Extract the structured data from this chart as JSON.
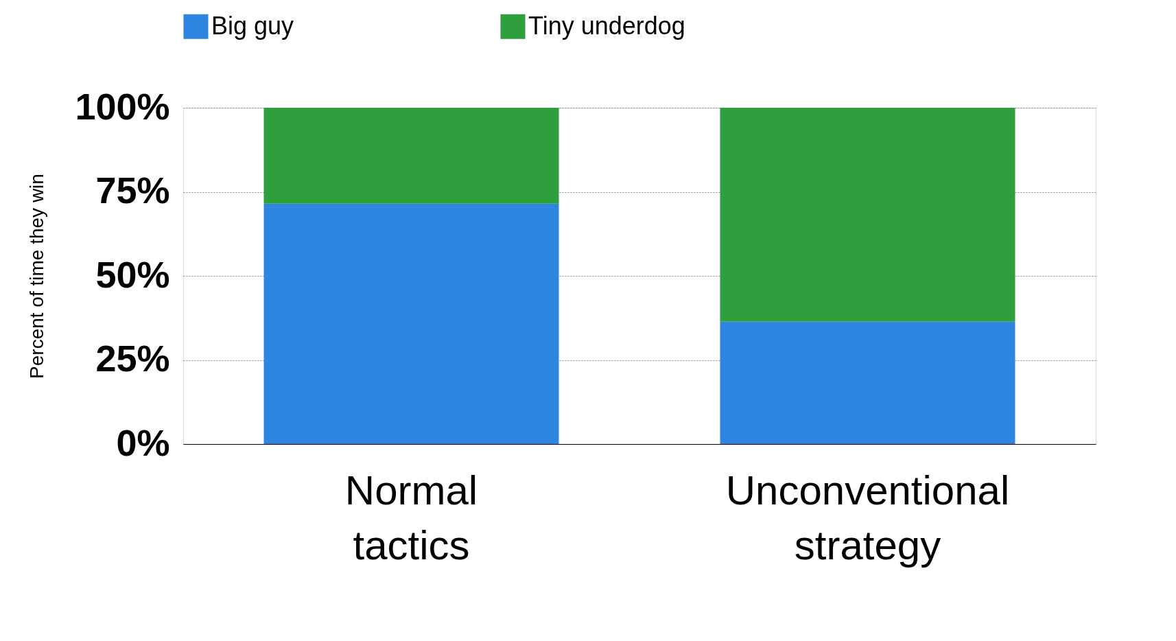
{
  "chart_data": {
    "type": "bar",
    "stacked": true,
    "ylabel": "Percent of time they win",
    "categories": [
      "Normal tactics",
      "Unconventional strategy"
    ],
    "series": [
      {
        "name": "Big guy",
        "color": "#2f86e0",
        "values": [
          71.5,
          36.4
        ]
      },
      {
        "name": "Tiny underdog",
        "color": "#2f9e3c",
        "values": [
          28.5,
          63.6
        ]
      }
    ],
    "ylim": [
      0,
      100
    ],
    "yticks": [
      {
        "value": 0,
        "label": "0%"
      },
      {
        "value": 25,
        "label": "25%"
      },
      {
        "value": 50,
        "label": "50%"
      },
      {
        "value": 75,
        "label": "75%"
      },
      {
        "value": 100,
        "label": "100%"
      }
    ],
    "grid": "y",
    "legend": "top"
  }
}
